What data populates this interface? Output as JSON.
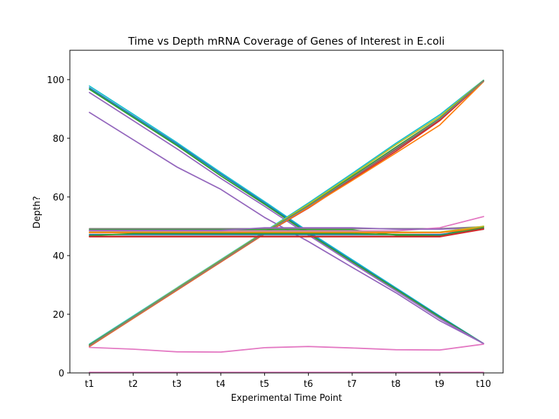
{
  "chart_data": {
    "type": "line",
    "title": "Time vs Depth mRNA Coverage of Genes of Interest in E.coli",
    "xlabel": "Experimental Time Point",
    "ylabel": "Depth?",
    "categories": [
      "t1",
      "t2",
      "t3",
      "t4",
      "t5",
      "t6",
      "t7",
      "t8",
      "t9",
      "t10"
    ],
    "ylim": [
      0,
      110
    ],
    "yticks": [
      0,
      20,
      40,
      60,
      80,
      100
    ],
    "grid": false,
    "series": [
      {
        "color": "#17becf",
        "values": [
          97.8,
          88.2,
          78.5,
          68.3,
          58.4,
          48.2,
          38.6,
          29.0,
          19.4,
          10.0
        ]
      },
      {
        "color": "#1f77b4",
        "values": [
          97.2,
          87.6,
          78.0,
          67.8,
          57.9,
          47.8,
          38.2,
          28.7,
          19.2,
          10.0
        ]
      },
      {
        "color": "#2ca02c",
        "values": [
          96.7,
          87.1,
          77.5,
          67.2,
          57.5,
          47.5,
          37.9,
          28.5,
          19.0,
          10.0
        ]
      },
      {
        "color": "#9467bd",
        "values": [
          95.6,
          86.0,
          76.4,
          66.3,
          56.8,
          47.0,
          37.4,
          28.0,
          18.5,
          10.0
        ]
      },
      {
        "color": "#9467bd",
        "values": [
          88.8,
          79.5,
          70.2,
          62.6,
          53.0,
          44.8,
          36.0,
          27.3,
          17.8,
          10.0
        ]
      },
      {
        "color": "#17becf",
        "values": [
          9.8,
          19.4,
          29.0,
          38.6,
          48.2,
          57.9,
          68.0,
          78.3,
          88.0,
          99.8
        ]
      },
      {
        "color": "#bcbd22",
        "values": [
          9.6,
          19.1,
          28.8,
          38.4,
          48.0,
          57.5,
          67.5,
          77.8,
          87.4,
          99.7
        ]
      },
      {
        "color": "#2ca02c",
        "values": [
          9.5,
          19.0,
          28.6,
          38.2,
          47.8,
          57.0,
          67.0,
          77.0,
          86.8,
          99.6
        ]
      },
      {
        "color": "#8c564b",
        "values": [
          9.2,
          18.8,
          28.4,
          38.0,
          47.6,
          56.6,
          66.4,
          76.2,
          86.4,
          99.5
        ]
      },
      {
        "color": "#d62728",
        "values": [
          9.0,
          18.6,
          28.2,
          37.8,
          47.4,
          56.2,
          65.9,
          75.6,
          86.0,
          99.4
        ]
      },
      {
        "color": "#ff7f0e",
        "values": [
          9.1,
          18.7,
          28.3,
          37.9,
          47.5,
          56.4,
          65.6,
          75.0,
          84.5,
          99.3
        ]
      },
      {
        "color": "#7f7f7f",
        "values": [
          9.3,
          18.9,
          28.5,
          38.1,
          47.7,
          56.8,
          66.6,
          76.6,
          86.6,
          99.5
        ]
      },
      {
        "color": "#7f7f7f",
        "values": [
          49.2,
          49.2,
          49.2,
          49.2,
          49.2,
          49.2,
          49.2,
          49.2,
          49.2,
          49.8
        ]
      },
      {
        "color": "#2ca02c",
        "values": [
          48.8,
          48.8,
          48.8,
          48.8,
          48.8,
          48.8,
          48.8,
          47.0,
          47.0,
          50.0
        ]
      },
      {
        "color": "#e377c2",
        "values": [
          48.4,
          48.4,
          48.4,
          48.4,
          48.4,
          48.4,
          48.4,
          48.4,
          49.5,
          53.3
        ]
      },
      {
        "color": "#9467bd",
        "values": [
          48.6,
          48.6,
          48.6,
          48.6,
          49.5,
          49.5,
          49.5,
          49.0,
          49.0,
          49.5
        ]
      },
      {
        "color": "#bcbd22",
        "values": [
          48.0,
          48.0,
          48.0,
          48.0,
          48.0,
          48.0,
          48.0,
          48.0,
          48.0,
          50.0
        ]
      },
      {
        "color": "#ff7f0e",
        "values": [
          47.8,
          47.8,
          47.8,
          47.8,
          47.8,
          47.8,
          47.8,
          47.8,
          47.8,
          49.5
        ]
      },
      {
        "color": "#1f77b4",
        "values": [
          47.2,
          47.2,
          47.2,
          47.2,
          47.2,
          47.2,
          47.2,
          47.2,
          47.2,
          49.0
        ]
      },
      {
        "color": "#2ca02c",
        "values": [
          46.8,
          47.5,
          47.5,
          47.5,
          47.5,
          47.5,
          47.5,
          47.2,
          46.8,
          49.5
        ]
      },
      {
        "color": "#8c564b",
        "values": [
          46.6,
          46.6,
          46.6,
          46.6,
          46.6,
          46.6,
          46.6,
          46.6,
          46.6,
          49.2
        ]
      },
      {
        "color": "#d62728",
        "values": [
          46.4,
          46.4,
          46.4,
          46.4,
          46.4,
          46.4,
          46.4,
          46.4,
          46.4,
          49.0
        ]
      },
      {
        "color": "#e377c2",
        "values": [
          8.7,
          8.1,
          7.2,
          7.1,
          8.6,
          9.0,
          8.5,
          7.9,
          7.8,
          9.8
        ]
      },
      {
        "color": "#e377c2",
        "values": [
          0.2,
          0.2,
          0.2,
          0.2,
          0.2,
          0.2,
          0.2,
          0.2,
          0.2,
          0.2
        ]
      }
    ]
  }
}
